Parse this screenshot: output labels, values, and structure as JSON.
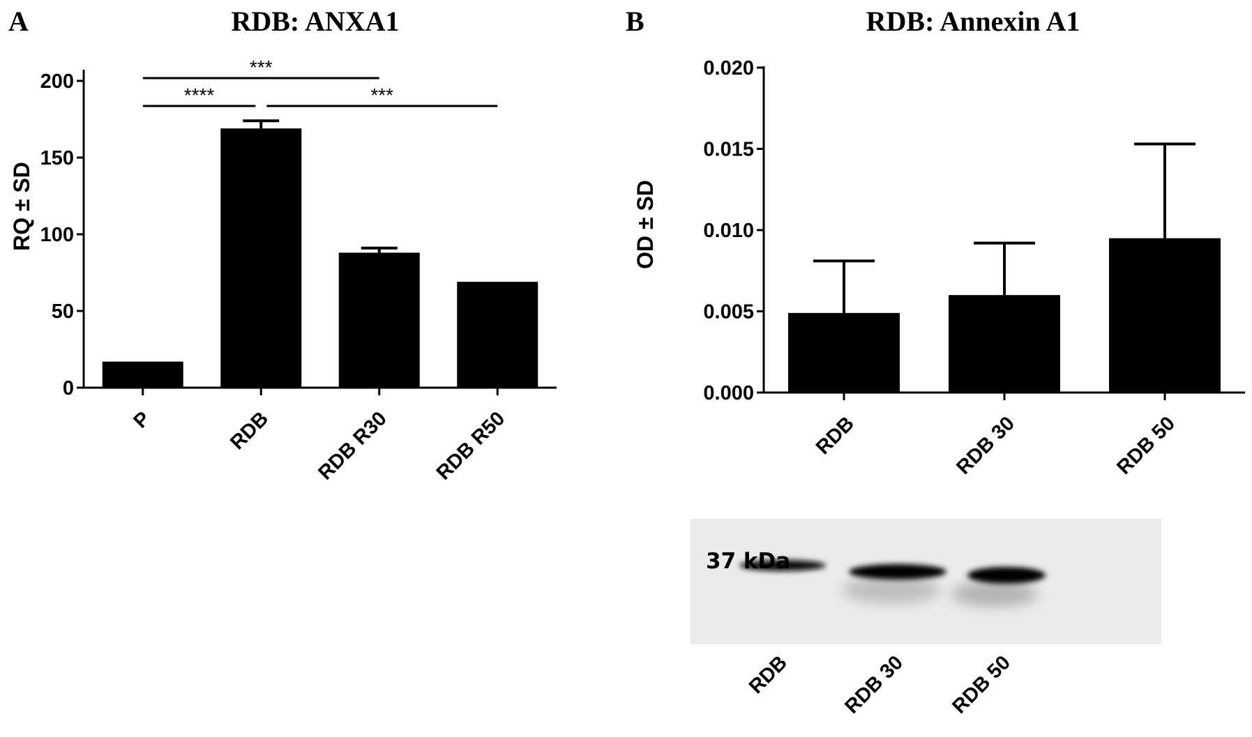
{
  "chart_data": [
    {
      "panel": "A",
      "type": "bar",
      "title": "RDB: ANXA1",
      "xlabel": "",
      "ylabel": "RQ ± SD",
      "ylim": [
        0,
        200
      ],
      "yticks": [
        "0",
        "50",
        "100",
        "150",
        "200"
      ],
      "categories": [
        "P",
        "RDB",
        "RDB R30",
        "RDB R50"
      ],
      "values": [
        17,
        169,
        88,
        69
      ],
      "errors": [
        0,
        5,
        3,
        0
      ],
      "significance": [
        {
          "from": 0,
          "to": 2,
          "label": "***"
        },
        {
          "from": 0,
          "to": 1,
          "label": "****"
        },
        {
          "from": 1,
          "to": 3,
          "label": "***"
        }
      ]
    },
    {
      "panel": "B",
      "type": "bar",
      "title": "RDB: Annexin A1",
      "xlabel": "",
      "ylabel": "OD ± SD",
      "ylim": [
        0,
        0.02
      ],
      "yticks": [
        "0.000",
        "0.005",
        "0.010",
        "0.015",
        "0.020"
      ],
      "categories": [
        "RDB",
        "RDB 30",
        "RDB 50"
      ],
      "values": [
        0.0049,
        0.006,
        0.0095
      ],
      "errors": [
        0.0032,
        0.0032,
        0.0058
      ]
    }
  ],
  "western_blot": {
    "marker_label": "37 kDa",
    "lanes": [
      "RDB",
      "RDB 30",
      "RDB 50"
    ]
  }
}
